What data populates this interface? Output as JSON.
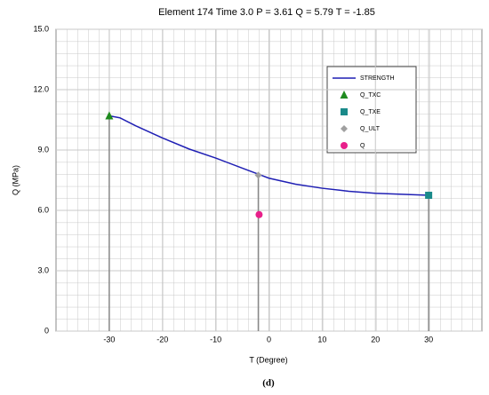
{
  "chart_data": {
    "type": "line",
    "title": "Element 174   Time 3.0    P =  3.61     Q =  5.79     T = -1.85",
    "xlabel": "T (Degree)",
    "ylabel": "Q (MPa)",
    "caption": "(d)",
    "xlim": [
      -40,
      40
    ],
    "xticks": [
      -30,
      -20,
      -10,
      0,
      10,
      20,
      30
    ],
    "ylim": [
      0,
      15
    ],
    "yticks": [
      0,
      {
        "value": 3,
        "label": "3.0"
      },
      {
        "value": 6,
        "label": "6.0"
      },
      {
        "value": 9,
        "label": "9.0"
      },
      {
        "value": 12,
        "label": "12.0"
      },
      {
        "value": 15,
        "label": "15.0"
      }
    ],
    "grid": true,
    "series": [
      {
        "name": "STRENGTH",
        "color": "#1f1fb4",
        "marker": "line",
        "x": [
          -30,
          -28,
          -25,
          -20,
          -15,
          -10,
          -5,
          -2,
          0,
          5,
          10,
          15,
          20,
          25,
          30
        ],
        "values": [
          10.7,
          10.6,
          10.2,
          9.6,
          9.05,
          8.6,
          8.1,
          7.8,
          7.6,
          7.3,
          7.1,
          6.95,
          6.85,
          6.8,
          6.75
        ]
      },
      {
        "name": "Q_TXC",
        "color": "#1e8a1e",
        "marker": "triangle",
        "x": [
          -30
        ],
        "values": [
          10.7
        ]
      },
      {
        "name": "Q_TXE",
        "color": "#1a8a8a",
        "marker": "square",
        "x": [
          30
        ],
        "values": [
          6.75
        ]
      },
      {
        "name": "Q_ULT",
        "color": "#a0a0a0",
        "marker": "diamond",
        "x": [
          -2
        ],
        "values": [
          7.75
        ]
      },
      {
        "name": "Q",
        "color": "#e8208a",
        "marker": "circle",
        "x": [
          -1.85
        ],
        "values": [
          5.79
        ]
      }
    ]
  }
}
